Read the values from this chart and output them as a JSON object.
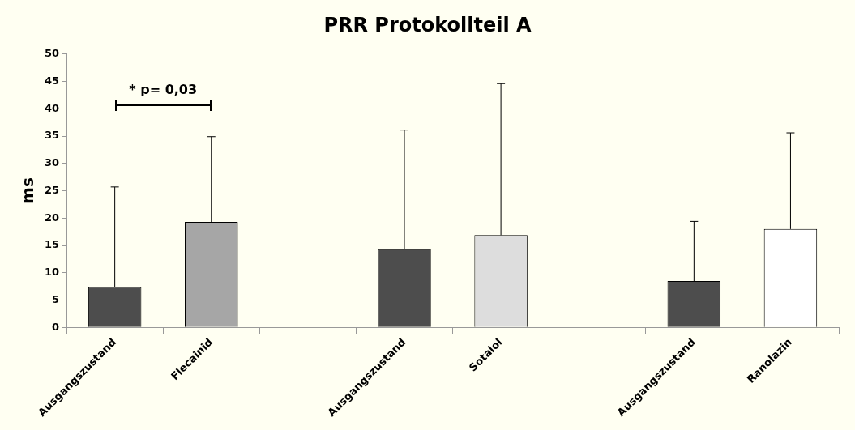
{
  "chart_data": {
    "type": "bar",
    "title": "PRR Protokollteil A",
    "ylabel": "ms",
    "categories": [
      "Ausgangszustand",
      "Flecainid",
      null,
      "Ausgangszustand",
      "Sotalol",
      null,
      "Ausgangszustand",
      "Ranolazin"
    ],
    "values": [
      7.4,
      19.3,
      null,
      14.3,
      16.9,
      null,
      8.5,
      18.0
    ],
    "colors": [
      "#4d4d4d",
      "#a6a6a6",
      "#4d4d4d",
      "#4d4d4d",
      "#dddddd",
      "#4d4d4d",
      "#4d4d4d",
      "#ffffff"
    ],
    "errors": [
      [
        7.4,
        25.7
      ],
      [
        19.3,
        34.9
      ],
      null,
      [
        14.3,
        36.1
      ],
      [
        16.9,
        44.6
      ],
      null,
      [
        8.5,
        19.4
      ],
      [
        18.0,
        35.6
      ]
    ],
    "ylim": [
      0,
      50
    ],
    "yticks": [
      0,
      5,
      10,
      15,
      20,
      25,
      30,
      35,
      40,
      45,
      50
    ],
    "grid": false,
    "legend": false,
    "annotations": [
      "* p= 0,03"
    ]
  }
}
